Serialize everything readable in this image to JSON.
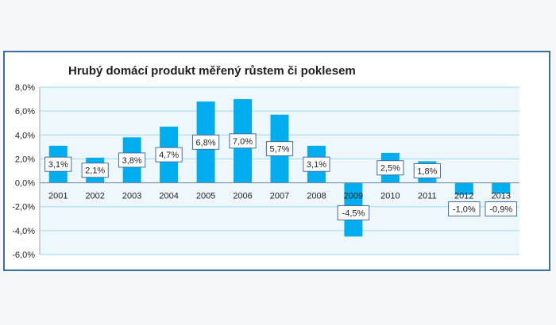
{
  "chart_data": {
    "type": "bar",
    "title": "Hrubý domácí produkt  měřený růstem či poklesem",
    "xlabel": "",
    "ylabel": "",
    "categories": [
      "2001",
      "2002",
      "2003",
      "2004",
      "2005",
      "2006",
      "2007",
      "2008",
      "2009",
      "2010",
      "2011",
      "2012",
      "2013"
    ],
    "values": [
      3.1,
      2.1,
      3.8,
      4.7,
      6.8,
      7.0,
      5.7,
      3.1,
      -4.5,
      2.5,
      1.8,
      -1.0,
      -0.9
    ],
    "data_labels": [
      "3,1%",
      "2,1%",
      "3,8%",
      "4,7%",
      "6,8%",
      "7,0%",
      "5,7%",
      "3,1%",
      "-4,5%",
      "2,5%",
      "1,8%",
      "-1,0%",
      "-0,9%"
    ],
    "ylim": [
      -6,
      8
    ],
    "y_ticks": [
      8,
      6,
      4,
      2,
      0,
      -2,
      -4,
      -6
    ],
    "y_tick_labels": [
      "8,0%",
      "6,0%",
      "4,0%",
      "2,0%",
      "0,0%",
      "-2,0%",
      "-4,0%",
      "-6,0%"
    ],
    "grid": true,
    "legend": "none"
  },
  "colors": {
    "bar": "#00aeef",
    "plot_background": "#eef8fc",
    "gridline": "#9fd8ee",
    "label_border": "#3f6fa4",
    "frame_border": "#3c6ea8"
  }
}
